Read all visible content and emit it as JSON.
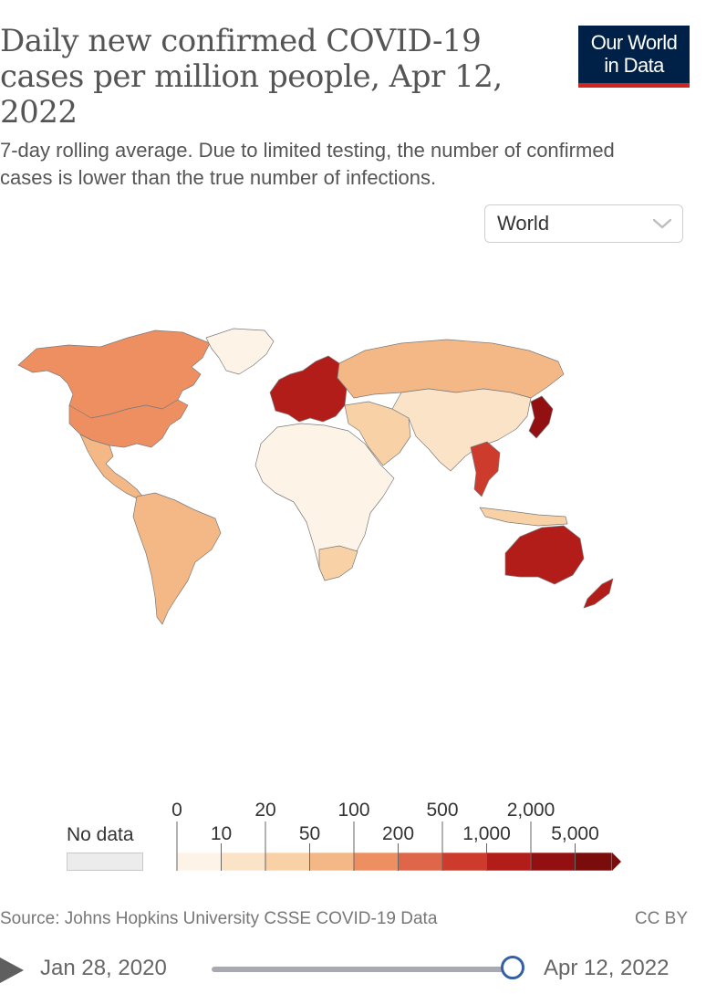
{
  "header": {
    "title": "Daily new confirmed COVID-19 cases per million people, Apr 12, 2022",
    "subtitle": "7-day rolling average. Due to limited testing, the number of confirmed cases is lower than the true number of infections.",
    "logo_line1": "Our World",
    "logo_line2": "in Data",
    "colors": {
      "logo_bg": "#002147",
      "logo_accent": "#ce261e"
    }
  },
  "region_select": {
    "value": "World",
    "icon": "chevron-down-icon"
  },
  "legend": {
    "no_data_label": "No data",
    "upper_ticks": [
      "0",
      "20",
      "100",
      "500",
      "2,000"
    ],
    "lower_ticks": [
      "10",
      "50",
      "200",
      "1,000",
      "5,000"
    ],
    "bins": [
      {
        "from": 0,
        "to": 10,
        "color": "#fdf3e7"
      },
      {
        "from": 10,
        "to": 20,
        "color": "#fbe3c8"
      },
      {
        "from": 20,
        "to": 50,
        "color": "#f8d2a6"
      },
      {
        "from": 50,
        "to": 100,
        "color": "#f4b886"
      },
      {
        "from": 100,
        "to": 200,
        "color": "#ee8f62"
      },
      {
        "from": 200,
        "to": 500,
        "color": "#e0664a"
      },
      {
        "from": 500,
        "to": 1000,
        "color": "#cd3b2d"
      },
      {
        "from": 1000,
        "to": 2000,
        "color": "#b21d1a"
      },
      {
        "from": 2000,
        "to": 5000,
        "color": "#931012"
      },
      {
        "from": 5000,
        "to": null,
        "color": "#7a0d0c"
      }
    ],
    "no_data_color": "#ececec"
  },
  "map": {
    "regions": [
      {
        "name": "North America",
        "shade": "#ee8f62"
      },
      {
        "name": "Greenland",
        "shade": "#fdf3e7"
      },
      {
        "name": "Mexico & Central America",
        "shade": "#f4b886"
      },
      {
        "name": "South America",
        "shade": "#f4b886"
      },
      {
        "name": "Europe",
        "shade": "#b21d1a"
      },
      {
        "name": "Russia",
        "shade": "#f4b886"
      },
      {
        "name": "Africa",
        "shade": "#fdf3e7"
      },
      {
        "name": "Middle East",
        "shade": "#f8d2a6"
      },
      {
        "name": "Asia",
        "shade": "#fbe3c8"
      },
      {
        "name": "Southeast Asia",
        "shade": "#cd3b2d"
      },
      {
        "name": "Korea & Japan",
        "shade": "#931012"
      },
      {
        "name": "Australia",
        "shade": "#b21d1a"
      },
      {
        "name": "New Zealand",
        "shade": "#b21d1a"
      }
    ]
  },
  "footer": {
    "source": "Source: Johns Hopkins University CSSE COVID-19 Data",
    "license": "CC BY"
  },
  "timeline": {
    "start_date": "Jan 28, 2020",
    "end_date": "Apr 12, 2022",
    "position": 1.0
  }
}
